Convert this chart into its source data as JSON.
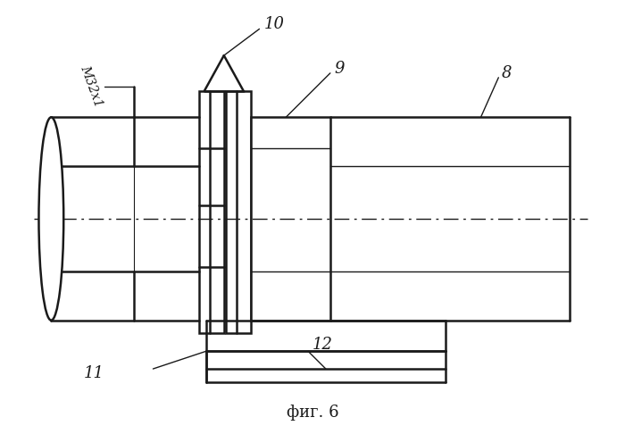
{
  "title": "фиг. 6",
  "background_color": "#ffffff",
  "line_color": "#1a1a1a",
  "line_width": 1.8
}
